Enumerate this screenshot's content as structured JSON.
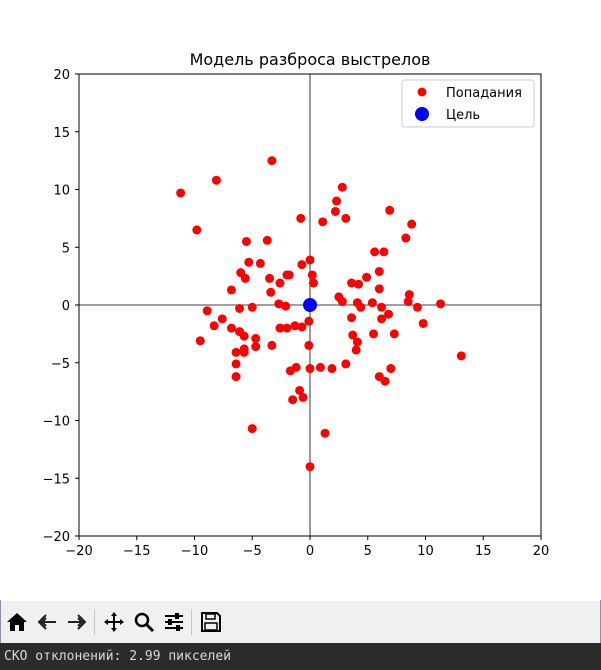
{
  "chart_data": {
    "type": "scatter",
    "title": "Модель разброса выстрелов",
    "xlabel": "",
    "ylabel": "",
    "xlim": [
      -20,
      20
    ],
    "ylim": [
      -20,
      20
    ],
    "xticks": [
      "−20",
      "−15",
      "−10",
      "−5",
      "0",
      "5",
      "10",
      "15",
      "20"
    ],
    "yticks": [
      "20",
      "15",
      "10",
      "5",
      "0",
      "−5",
      "−10",
      "−15",
      "−20"
    ],
    "xtick_values": [
      -20,
      -15,
      -10,
      -5,
      0,
      5,
      10,
      15,
      20
    ],
    "ytick_values": [
      20,
      15,
      10,
      5,
      0,
      -5,
      -10,
      -15,
      -20
    ],
    "grid": false,
    "axis_lines_through_origin": true,
    "legend_position": "top-right",
    "series": [
      {
        "name": "Попадания",
        "color": "#ff0000",
        "points": [
          [
            -11.2,
            9.7
          ],
          [
            -8.1,
            10.8
          ],
          [
            -3.3,
            12.5
          ],
          [
            -9.8,
            6.5
          ],
          [
            -5.5,
            5.5
          ],
          [
            -3.7,
            5.6
          ],
          [
            -0.8,
            7.5
          ],
          [
            1.1,
            7.2
          ],
          [
            2.2,
            8.1
          ],
          [
            2.3,
            9.0
          ],
          [
            2.8,
            10.2
          ],
          [
            3.1,
            7.5
          ],
          [
            6.9,
            8.2
          ],
          [
            8.8,
            7.0
          ],
          [
            8.3,
            5.8
          ],
          [
            5.6,
            4.6
          ],
          [
            6.4,
            4.6
          ],
          [
            0.0,
            3.9
          ],
          [
            -0.7,
            3.5
          ],
          [
            -5.3,
            3.7
          ],
          [
            -4.3,
            3.6
          ],
          [
            -6.0,
            2.8
          ],
          [
            -5.6,
            2.3
          ],
          [
            -3.5,
            2.3
          ],
          [
            -2.0,
            2.6
          ],
          [
            -1.8,
            2.6
          ],
          [
            0.2,
            2.6
          ],
          [
            0.3,
            1.9
          ],
          [
            -2.6,
            1.9
          ],
          [
            -3.4,
            1.1
          ],
          [
            -6.8,
            1.3
          ],
          [
            2.5,
            0.7
          ],
          [
            2.8,
            0.3
          ],
          [
            3.6,
            1.9
          ],
          [
            4.2,
            1.8
          ],
          [
            4.9,
            2.4
          ],
          [
            6.0,
            1.4
          ],
          [
            6.0,
            2.9
          ],
          [
            8.6,
            0.9
          ],
          [
            8.5,
            0.3
          ],
          [
            9.3,
            -0.2
          ],
          [
            11.3,
            0.1
          ],
          [
            13.1,
            -4.4
          ],
          [
            9.8,
            -1.6
          ],
          [
            7.3,
            -2.5
          ],
          [
            6.8,
            -0.8
          ],
          [
            6.2,
            -1.2
          ],
          [
            6.2,
            -0.2
          ],
          [
            5.4,
            0.2
          ],
          [
            4.1,
            0.2
          ],
          [
            4.4,
            -0.2
          ],
          [
            3.6,
            -1.1
          ],
          [
            3.7,
            -2.6
          ],
          [
            4.1,
            -3.2
          ],
          [
            4.0,
            -3.9
          ],
          [
            3.1,
            -5.1
          ],
          [
            5.5,
            -2.5
          ],
          [
            6.0,
            -6.2
          ],
          [
            6.5,
            -6.6
          ],
          [
            7.0,
            -5.5
          ],
          [
            -2.1,
            -0.1
          ],
          [
            -1.3,
            -1.8
          ],
          [
            -0.7,
            -1.9
          ],
          [
            -0.1,
            -1.4
          ],
          [
            -2.7,
            0.1
          ],
          [
            -5.0,
            -0.2
          ],
          [
            -6.1,
            -0.3
          ],
          [
            -8.9,
            -0.5
          ],
          [
            -7.6,
            -1.2
          ],
          [
            -8.3,
            -1.8
          ],
          [
            -6.8,
            -2.0
          ],
          [
            -6.1,
            -2.3
          ],
          [
            -5.7,
            -2.7
          ],
          [
            -4.7,
            -2.9
          ],
          [
            -2.6,
            -2.0
          ],
          [
            -2.0,
            -2.0
          ],
          [
            -3.3,
            -3.5
          ],
          [
            -4.7,
            -3.6
          ],
          [
            -5.7,
            -3.8
          ],
          [
            -5.7,
            -4.1
          ],
          [
            -6.4,
            -4.1
          ],
          [
            -6.4,
            -5.1
          ],
          [
            -6.4,
            -6.2
          ],
          [
            -9.5,
            -3.1
          ],
          [
            -1.7,
            -5.7
          ],
          [
            -1.2,
            -5.4
          ],
          [
            -0.1,
            -3.5
          ],
          [
            0.0,
            -5.5
          ],
          [
            0.9,
            -5.4
          ],
          [
            1.9,
            -5.5
          ],
          [
            -0.9,
            -7.4
          ],
          [
            -0.6,
            -8.0
          ],
          [
            -1.5,
            -8.2
          ],
          [
            1.3,
            -11.1
          ],
          [
            -5.0,
            -10.7
          ],
          [
            0.0,
            -14.0
          ]
        ]
      },
      {
        "name": "Цель",
        "color": "#0000ff",
        "points": [
          [
            0,
            0
          ]
        ]
      }
    ]
  },
  "toolbar": {
    "buttons": [
      {
        "name": "home-button",
        "icon": "home-icon"
      },
      {
        "name": "back-button",
        "icon": "arrow-left-icon"
      },
      {
        "name": "forward-button",
        "icon": "arrow-right-icon"
      },
      {
        "name": "pan-button",
        "icon": "move-icon"
      },
      {
        "name": "zoom-button",
        "icon": "magnifier-icon"
      },
      {
        "name": "configure-subplots-button",
        "icon": "sliders-icon"
      },
      {
        "name": "save-button",
        "icon": "floppy-disk-icon"
      }
    ]
  },
  "status": {
    "text": "СКО отклонений: 2.99 пикселей"
  }
}
